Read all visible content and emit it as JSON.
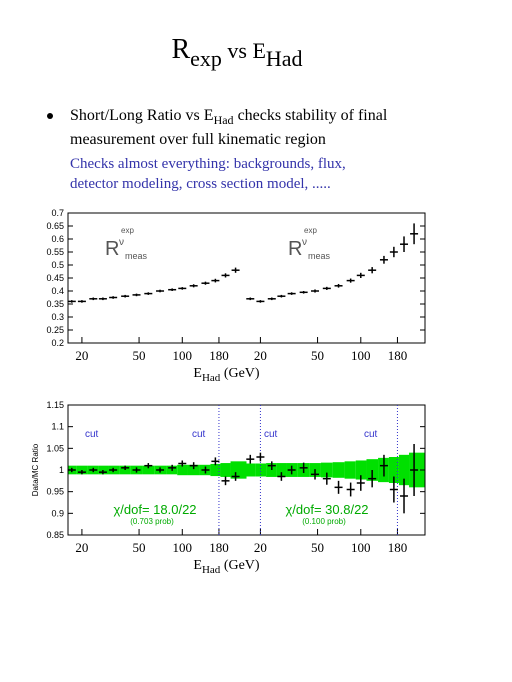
{
  "title": {
    "main": "R",
    "sub": "exp",
    "mid": " vs E",
    "sub2": "Had"
  },
  "bullet": {
    "line1": [
      "Short/Long Ratio vs E",
      "Had",
      " checks stability of final"
    ],
    "line2": "measurement over full kinematic region"
  },
  "note": [
    "Checks almost everything: backgrounds, flux,",
    "detector modeling, cross section model, ....."
  ],
  "chart_data": [
    {
      "type": "scatter",
      "xlog": true,
      "xlim": [
        16,
        280
      ],
      "xticks": [
        20,
        50,
        100,
        180
      ],
      "ylim": [
        0.2,
        0.7
      ],
      "yticks": [
        0.2,
        0.25,
        0.3,
        0.35,
        0.4,
        0.45,
        0.5,
        0.55,
        0.6,
        0.65,
        0.7
      ],
      "xlabel": [
        "E",
        "Had",
        " (GeV)"
      ],
      "color": "#000000",
      "annotations": [
        [
          "R",
          "ν",
          "meas",
          "exp"
        ],
        [
          "R",
          "ν",
          "meas",
          "exp"
        ]
      ],
      "panels": [
        {
          "x": [
            17,
            20,
            24,
            28,
            33,
            40,
            48,
            58,
            70,
            85,
            100,
            120,
            145,
            170,
            200,
            235
          ],
          "values": [
            0.36,
            0.36,
            0.37,
            0.37,
            0.375,
            0.38,
            0.385,
            0.39,
            0.4,
            0.405,
            0.41,
            0.42,
            0.43,
            0.44,
            0.46,
            0.48
          ],
          "errors": [
            0.005,
            0.005,
            0.005,
            0.005,
            0.005,
            0.005,
            0.005,
            0.005,
            0.005,
            0.005,
            0.005,
            0.006,
            0.006,
            0.007,
            0.008,
            0.01
          ]
        },
        {
          "x": [
            17,
            20,
            24,
            28,
            33,
            40,
            48,
            58,
            70,
            85,
            100,
            120,
            145,
            170,
            200,
            235
          ],
          "values": [
            0.37,
            0.36,
            0.37,
            0.38,
            0.39,
            0.395,
            0.4,
            0.41,
            0.42,
            0.44,
            0.46,
            0.48,
            0.52,
            0.55,
            0.58,
            0.62
          ],
          "errors": [
            0.005,
            0.005,
            0.005,
            0.005,
            0.005,
            0.005,
            0.006,
            0.006,
            0.007,
            0.008,
            0.01,
            0.012,
            0.015,
            0.02,
            0.03,
            0.04
          ]
        }
      ]
    },
    {
      "type": "scatter",
      "xlog": true,
      "xlim": [
        16,
        280
      ],
      "xticks": [
        20,
        50,
        100,
        180
      ],
      "ylim": [
        0.85,
        1.15
      ],
      "yticks": [
        0.85,
        0.9,
        0.95,
        1,
        1.05,
        1.1,
        1.15
      ],
      "ylabel": "Data/MC Ratio",
      "xlabel": [
        "E",
        "Had",
        " (GeV)"
      ],
      "color": "#000000",
      "band_color": "#00e000",
      "cut_labels": [
        "cut",
        "cut",
        "cut",
        "cut"
      ],
      "fits": [
        {
          "text": "χ/dof= 18.0/22",
          "prob": "(0.703 prob)"
        },
        {
          "text": "χ/dof= 30.8/22",
          "prob": "(0.100 prob)"
        }
      ],
      "panels": [
        {
          "cuts": [
            180
          ],
          "x": [
            17,
            20,
            24,
            28,
            33,
            40,
            48,
            58,
            70,
            85,
            100,
            120,
            145,
            170,
            200,
            235
          ],
          "values": [
            1.0,
            0.995,
            1.0,
            0.995,
            1.0,
            1.005,
            1.0,
            1.01,
            1.0,
            1.005,
            1.015,
            1.01,
            1.0,
            1.02,
            0.975,
            0.985
          ],
          "errors": [
            0.005,
            0.005,
            0.005,
            0.005,
            0.005,
            0.005,
            0.006,
            0.006,
            0.006,
            0.007,
            0.007,
            0.008,
            0.008,
            0.009,
            0.01,
            0.01
          ],
          "band": [
            0.01,
            0.01,
            0.01,
            0.01,
            0.01,
            0.01,
            0.01,
            0.01,
            0.01,
            0.01,
            0.012,
            0.012,
            0.012,
            0.014,
            0.016,
            0.02
          ]
        },
        {
          "cuts": [
            20,
            180
          ],
          "x": [
            17,
            20,
            24,
            28,
            33,
            40,
            48,
            58,
            70,
            85,
            100,
            120,
            145,
            170,
            200,
            235
          ],
          "values": [
            1.025,
            1.03,
            1.01,
            0.985,
            1.0,
            1.005,
            0.99,
            0.98,
            0.96,
            0.955,
            0.97,
            0.98,
            1.01,
            0.955,
            0.94,
            1.0
          ],
          "errors": [
            0.01,
            0.01,
            0.01,
            0.01,
            0.01,
            0.012,
            0.012,
            0.014,
            0.015,
            0.016,
            0.018,
            0.02,
            0.025,
            0.03,
            0.04,
            0.06
          ],
          "band": [
            0.015,
            0.015,
            0.016,
            0.016,
            0.016,
            0.016,
            0.016,
            0.017,
            0.018,
            0.02,
            0.022,
            0.025,
            0.028,
            0.03,
            0.035,
            0.04
          ]
        }
      ]
    }
  ]
}
